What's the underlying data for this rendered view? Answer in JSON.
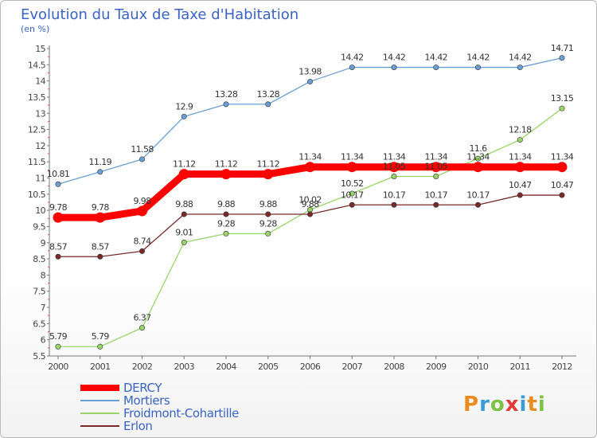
{
  "chart_data": {
    "type": "line",
    "title": "Evolution du Taux de Taxe d'Habitation",
    "subtitle": "(en %)",
    "x": [
      "2000",
      "2001",
      "2002",
      "2003",
      "2004",
      "2005",
      "2006",
      "2007",
      "2008",
      "2009",
      "2010",
      "2011",
      "2012"
    ],
    "ylim": [
      5.5,
      15
    ],
    "yticks": [
      "5.5",
      "6",
      "6.5",
      "7",
      "7.5",
      "8",
      "8.5",
      "9",
      "9.5",
      "10",
      "10.5",
      "11",
      "11.5",
      "12",
      "12.5",
      "13",
      "13.5",
      "14",
      "14.5",
      "15"
    ],
    "grid": false,
    "legend_position": "bottom-left",
    "series": [
      {
        "name": "DERCY",
        "color": "#ff0000",
        "values": [
          9.78,
          9.78,
          9.98,
          11.12,
          11.12,
          11.12,
          11.34,
          11.34,
          11.34,
          11.34,
          11.34,
          11.34,
          11.34
        ],
        "labels": [
          "9.78",
          "9.78",
          "9.98",
          "11.12",
          "11.12",
          "11.12",
          "11.34",
          "11.34",
          "11.34",
          "11.34",
          "11.34",
          "11.34",
          "11.34"
        ]
      },
      {
        "name": "Mortiers",
        "color": "#6a9fd4",
        "values": [
          10.81,
          11.19,
          11.58,
          12.9,
          13.28,
          13.28,
          13.98,
          14.42,
          14.42,
          14.42,
          14.42,
          14.42,
          14.71
        ],
        "labels": [
          "10.81",
          "11.19",
          "11.58",
          "12.9",
          "13.28",
          "13.28",
          "13.98",
          "14.42",
          "14.42",
          "14.42",
          "14.42",
          "14.42",
          "14.71"
        ]
      },
      {
        "name": "Froidmont-Cohartille",
        "color": "#9ad46a",
        "values": [
          5.79,
          5.79,
          6.37,
          9.01,
          9.28,
          9.28,
          10.02,
          10.52,
          11.05,
          11.05,
          11.6,
          12.18,
          13.15
        ],
        "labels": [
          "5.79",
          "5.79",
          "6.37",
          "9.01",
          "9.28",
          "9.28",
          "10.02",
          "10.52",
          "11.05",
          "11.05",
          "11.6",
          "12.18",
          "13.15"
        ]
      },
      {
        "name": "Erlon",
        "color": "#7a2a2a",
        "values": [
          8.57,
          8.57,
          8.74,
          9.88,
          9.88,
          9.88,
          9.88,
          10.17,
          10.17,
          10.17,
          10.17,
          10.47,
          10.47
        ],
        "labels": [
          "8.57",
          "8.57",
          "8.74",
          "9.88",
          "9.88",
          "9.88",
          "9.88",
          "10.17",
          "10.17",
          "10.17",
          "10.17",
          "10.47",
          "10.47"
        ]
      }
    ]
  },
  "logo_text": "Proxiti"
}
